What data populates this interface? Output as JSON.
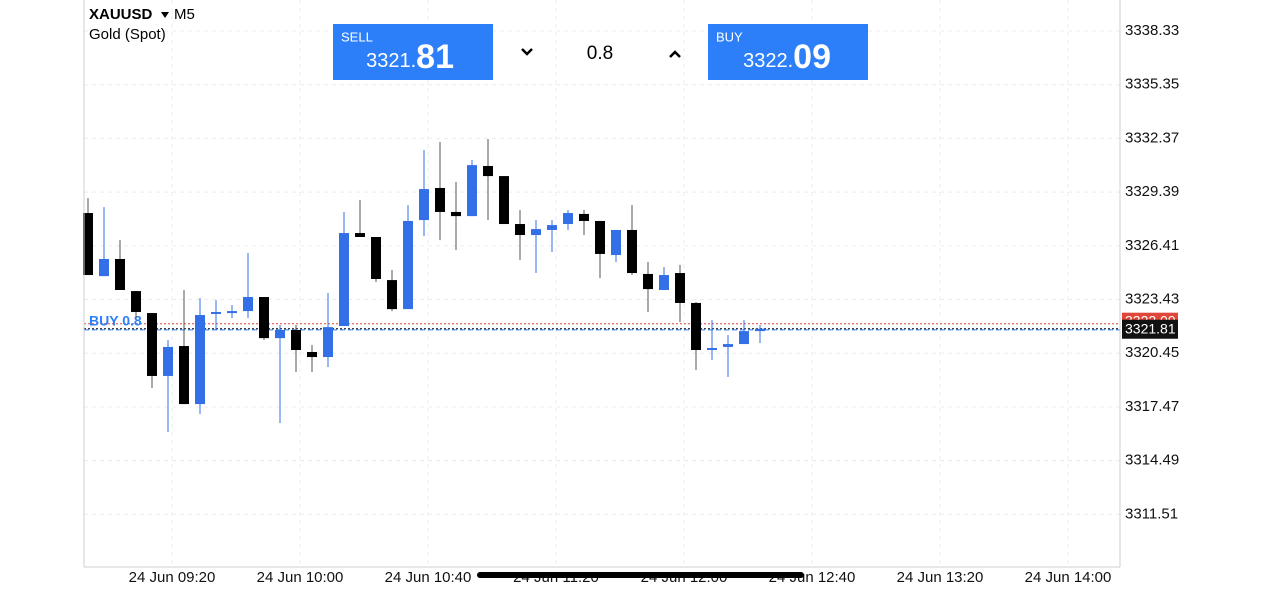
{
  "header": {
    "symbol": "XAUUSD",
    "timeframe": "M5",
    "name": "Gold (Spot)"
  },
  "trade": {
    "sell_label": "SELL",
    "sell_price": [
      "3321.",
      "81"
    ],
    "volume": 0.8,
    "buy_label": "BUY",
    "buy_price": [
      "3322.",
      "09"
    ]
  },
  "chart_data": {
    "type": "candlestick",
    "x": [
      "08:55",
      "09:00",
      "09:05",
      "09:10",
      "09:15",
      "09:20",
      "09:25",
      "09:30",
      "09:35",
      "09:40",
      "09:45",
      "09:50",
      "09:55",
      "10:00",
      "10:05",
      "10:10",
      "10:15",
      "10:20",
      "10:25",
      "10:30",
      "10:35",
      "10:40",
      "10:45",
      "10:50",
      "10:55",
      "11:00",
      "11:05",
      "11:10",
      "11:15",
      "11:20",
      "11:25",
      "11:30",
      "11:35",
      "11:40",
      "11:45",
      "11:50",
      "11:55",
      "12:00",
      "12:05",
      "12:10",
      "12:15",
      "12:20",
      "12:25"
    ],
    "open": [
      3328.23,
      3324.73,
      3325.68,
      3323.9,
      3322.68,
      3319.19,
      3320.85,
      3317.63,
      3322.63,
      3322.74,
      3322.79,
      3323.57,
      3321.29,
      3321.74,
      3320.52,
      3320.24,
      3321.96,
      3327.12,
      3326.9,
      3324.51,
      3322.9,
      3327.84,
      3329.62,
      3328.29,
      3328.06,
      3330.84,
      3330.28,
      3327.62,
      3327.01,
      3327.29,
      3327.62,
      3328.18,
      3327.79,
      3325.9,
      3327.29,
      3324.85,
      3323.96,
      3324.9,
      3323.24,
      3320.68,
      3320.8,
      3320.96,
      3321.68
    ],
    "high": [
      3329.06,
      3328.56,
      3326.73,
      3323.9,
      3322.68,
      3321.18,
      3323.96,
      3323.51,
      3323.4,
      3323.13,
      3326.01,
      3323.57,
      3322.02,
      3322.02,
      3320.91,
      3323.79,
      3328.29,
      3328.95,
      3326.9,
      3325.07,
      3328.67,
      3331.73,
      3332.17,
      3329.95,
      3331.17,
      3332.34,
      3330.28,
      3328.4,
      3327.84,
      3327.84,
      3328.4,
      3328.4,
      3327.79,
      3327.29,
      3328.67,
      3325.51,
      3325.23,
      3325.35,
      3323.29,
      3322.29,
      3321.46,
      3322.29,
      3322.02
    ],
    "low": [
      3324.79,
      3324.73,
      3323.96,
      3322.4,
      3318.52,
      3316.08,
      3317.63,
      3317.08,
      3321.74,
      3322.4,
      3322.4,
      3321.18,
      3316.58,
      3319.41,
      3319.41,
      3319.69,
      3321.96,
      3326.9,
      3324.4,
      3322.79,
      3322.9,
      3326.95,
      3326.73,
      3326.18,
      3328.06,
      3327.84,
      3327.62,
      3325.62,
      3324.9,
      3326.07,
      3327.29,
      3327.01,
      3324.62,
      3325.51,
      3324.79,
      3322.74,
      3323.96,
      3322.18,
      3319.52,
      3320.07,
      3319.13,
      3320.96,
      3321.02
    ],
    "close": [
      3324.79,
      3325.68,
      3323.96,
      3322.74,
      3319.19,
      3320.8,
      3317.63,
      3322.57,
      3322.74,
      3322.79,
      3323.57,
      3321.29,
      3321.74,
      3320.63,
      3320.24,
      3321.9,
      3327.12,
      3326.9,
      3324.57,
      3322.9,
      3327.79,
      3329.56,
      3328.29,
      3328.06,
      3330.89,
      3330.28,
      3327.62,
      3327.01,
      3327.34,
      3327.56,
      3328.23,
      3327.79,
      3325.96,
      3327.29,
      3324.9,
      3324.01,
      3324.79,
      3323.24,
      3320.63,
      3320.74,
      3320.96,
      3321.68,
      3321.81
    ],
    "up_color": "#3370e8",
    "down_color": "#000000",
    "ylim": [
      3308.59,
      3340.05
    ],
    "yticks": [
      3338.33,
      3335.35,
      3332.37,
      3329.39,
      3326.41,
      3323.43,
      3320.45,
      3317.47,
      3314.49,
      3311.51
    ],
    "xticks": [
      {
        "value": "09:20",
        "label": "24 Jun 09:20"
      },
      {
        "value": "10:00",
        "label": "24 Jun 10:00"
      },
      {
        "value": "10:40",
        "label": "24 Jun 10:40"
      },
      {
        "value": "11:20",
        "label": "24 Jun 11:20"
      },
      {
        "value": "12:00",
        "label": "24 Jun 12:00"
      },
      {
        "value": "12:40",
        "label": "24 Jun 12:40"
      },
      {
        "value": "13:20",
        "label": "24 Jun 13:20"
      },
      {
        "value": "14:00",
        "label": "24 Jun 14:00"
      }
    ],
    "grid": true,
    "bid": 3321.81,
    "ask": 3322.09,
    "position": {
      "label": "BUY 0.8",
      "price": 3321.75
    }
  }
}
